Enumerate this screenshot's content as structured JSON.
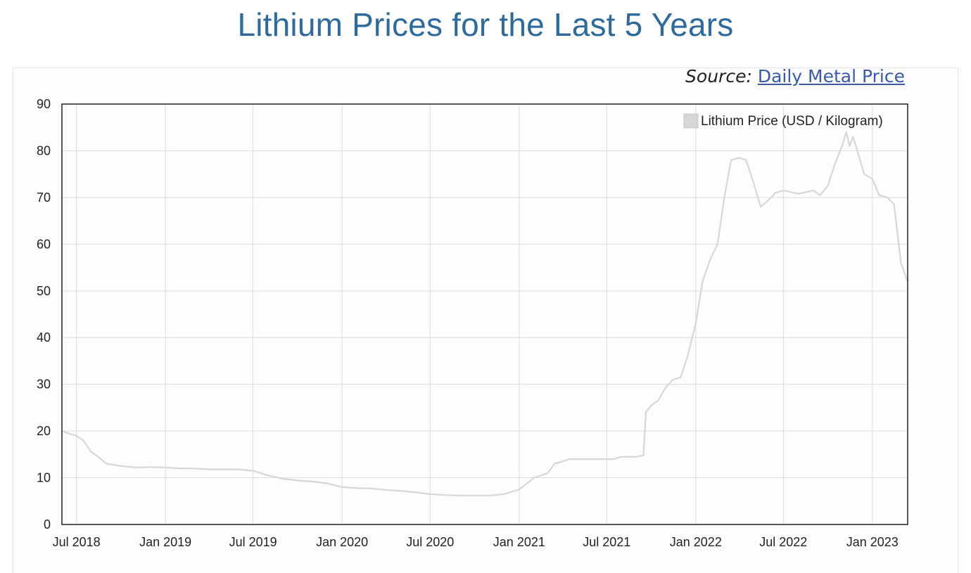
{
  "title": "Lithium Prices for the Last 5 Years",
  "source": {
    "label": "Source:",
    "link_text": "Daily Metal Price"
  },
  "chart_data": {
    "type": "line",
    "title": "Lithium Prices for the Last 5 Years",
    "xlabel": "",
    "ylabel": "",
    "xlim": [
      "2018-06-01",
      "2023-03-15"
    ],
    "ylim": [
      0,
      90
    ],
    "y_ticks": [
      0,
      10,
      20,
      30,
      40,
      50,
      60,
      70,
      80,
      90
    ],
    "x_ticks": [
      {
        "date": "2018-07-01",
        "label": "Jul 2018"
      },
      {
        "date": "2019-01-01",
        "label": "Jan 2019"
      },
      {
        "date": "2019-07-01",
        "label": "Jul 2019"
      },
      {
        "date": "2020-01-01",
        "label": "Jan 2020"
      },
      {
        "date": "2020-07-01",
        "label": "Jul 2020"
      },
      {
        "date": "2021-01-01",
        "label": "Jan 2021"
      },
      {
        "date": "2021-07-01",
        "label": "Jul 2021"
      },
      {
        "date": "2022-01-01",
        "label": "Jan 2022"
      },
      {
        "date": "2022-07-01",
        "label": "Jul 2022"
      },
      {
        "date": "2023-01-01",
        "label": "Jan 2023"
      }
    ],
    "grid": true,
    "legend": "top-right",
    "series": [
      {
        "name": "Lithium Price (USD / Kilogram)",
        "color": "#d7d7d7",
        "points": [
          [
            "2018-06-01",
            20.0
          ],
          [
            "2018-06-15",
            19.5
          ],
          [
            "2018-07-01",
            19.0
          ],
          [
            "2018-07-15",
            18.0
          ],
          [
            "2018-08-01",
            15.5
          ],
          [
            "2018-08-15",
            14.5
          ],
          [
            "2018-09-01",
            13.0
          ],
          [
            "2018-09-15",
            12.8
          ],
          [
            "2018-10-01",
            12.5
          ],
          [
            "2018-11-01",
            12.2
          ],
          [
            "2018-12-01",
            12.3
          ],
          [
            "2019-01-01",
            12.2
          ],
          [
            "2019-02-01",
            12.0
          ],
          [
            "2019-03-01",
            12.0
          ],
          [
            "2019-04-01",
            11.8
          ],
          [
            "2019-05-01",
            11.8
          ],
          [
            "2019-06-01",
            11.8
          ],
          [
            "2019-07-01",
            11.5
          ],
          [
            "2019-08-01",
            10.5
          ],
          [
            "2019-09-01",
            9.8
          ],
          [
            "2019-10-01",
            9.4
          ],
          [
            "2019-11-01",
            9.2
          ],
          [
            "2019-12-01",
            8.8
          ],
          [
            "2020-01-01",
            8.0
          ],
          [
            "2020-02-01",
            7.8
          ],
          [
            "2020-03-01",
            7.7
          ],
          [
            "2020-04-01",
            7.4
          ],
          [
            "2020-05-01",
            7.2
          ],
          [
            "2020-06-01",
            6.9
          ],
          [
            "2020-07-01",
            6.5
          ],
          [
            "2020-08-01",
            6.3
          ],
          [
            "2020-09-01",
            6.2
          ],
          [
            "2020-10-01",
            6.2
          ],
          [
            "2020-11-01",
            6.2
          ],
          [
            "2020-12-01",
            6.5
          ],
          [
            "2021-01-01",
            7.5
          ],
          [
            "2021-02-01",
            10.0
          ],
          [
            "2021-03-01",
            11.0
          ],
          [
            "2021-03-15",
            13.0
          ],
          [
            "2021-04-01",
            13.5
          ],
          [
            "2021-04-15",
            14.0
          ],
          [
            "2021-05-01",
            14.0
          ],
          [
            "2021-06-01",
            14.0
          ],
          [
            "2021-07-01",
            14.0
          ],
          [
            "2021-07-15",
            14.0
          ],
          [
            "2021-08-01",
            14.5
          ],
          [
            "2021-09-01",
            14.5
          ],
          [
            "2021-09-15",
            14.8
          ],
          [
            "2021-09-20",
            24.0
          ],
          [
            "2021-10-01",
            25.5
          ],
          [
            "2021-10-15",
            26.5
          ],
          [
            "2021-11-01",
            29.5
          ],
          [
            "2021-11-15",
            31.0
          ],
          [
            "2021-12-01",
            31.5
          ],
          [
            "2021-12-15",
            36.0
          ],
          [
            "2022-01-01",
            43.0
          ],
          [
            "2022-01-15",
            52.0
          ],
          [
            "2022-02-01",
            57.0
          ],
          [
            "2022-02-15",
            60.0
          ],
          [
            "2022-03-01",
            70.0
          ],
          [
            "2022-03-15",
            78.0
          ],
          [
            "2022-04-01",
            78.5
          ],
          [
            "2022-04-15",
            78.0
          ],
          [
            "2022-05-01",
            73.0
          ],
          [
            "2022-05-15",
            68.0
          ],
          [
            "2022-06-01",
            69.5
          ],
          [
            "2022-06-15",
            71.0
          ],
          [
            "2022-07-01",
            71.5
          ],
          [
            "2022-08-01",
            70.8
          ],
          [
            "2022-09-01",
            71.5
          ],
          [
            "2022-09-15",
            70.5
          ],
          [
            "2022-10-01",
            72.5
          ],
          [
            "2022-10-15",
            77.0
          ],
          [
            "2022-11-01",
            81.5
          ],
          [
            "2022-11-08",
            84.0
          ],
          [
            "2022-11-15",
            81.0
          ],
          [
            "2022-11-22",
            83.0
          ],
          [
            "2022-12-01",
            80.0
          ],
          [
            "2022-12-15",
            75.0
          ],
          [
            "2023-01-01",
            74.0
          ],
          [
            "2023-01-15",
            70.5
          ],
          [
            "2023-02-01",
            70.0
          ],
          [
            "2023-02-15",
            68.5
          ],
          [
            "2023-03-01",
            56.0
          ],
          [
            "2023-03-15",
            52.0
          ]
        ]
      }
    ]
  }
}
